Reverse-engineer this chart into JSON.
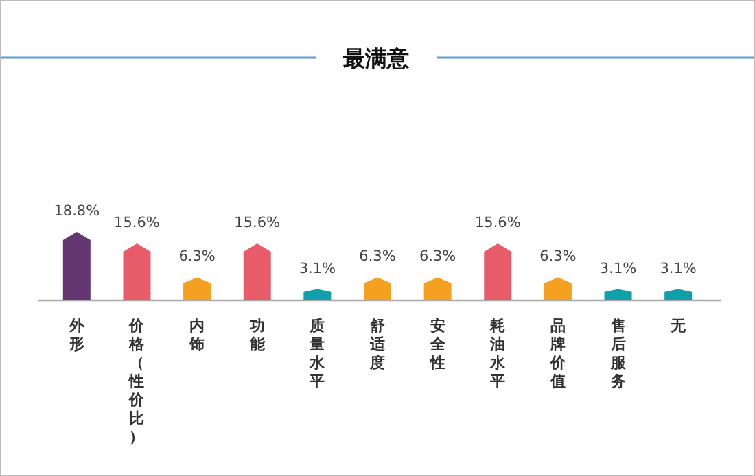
{
  "chart_data": {
    "type": "bar",
    "title": "最满意",
    "categories": [
      "外形",
      "价格（性价比）",
      "内饰",
      "功能",
      "质量水平",
      "舒适度",
      "安全性",
      "耗油水平",
      "品牌价值",
      "售后服务",
      "无"
    ],
    "values": [
      18.8,
      15.6,
      6.3,
      15.6,
      3.1,
      6.3,
      6.3,
      15.6,
      6.3,
      3.1,
      3.1
    ],
    "value_labels": [
      "18.8%",
      "15.6%",
      "6.3%",
      "15.6%",
      "3.1%",
      "6.3%",
      "6.3%",
      "15.6%",
      "6.3%",
      "3.1%",
      "3.1%"
    ],
    "colors": [
      "#643672",
      "#e85c6a",
      "#f5a020",
      "#e85c6a",
      "#10a0ac",
      "#f5a020",
      "#f5a020",
      "#e85c6a",
      "#f5a020",
      "#10a0ac",
      "#10a0ac"
    ]
  }
}
